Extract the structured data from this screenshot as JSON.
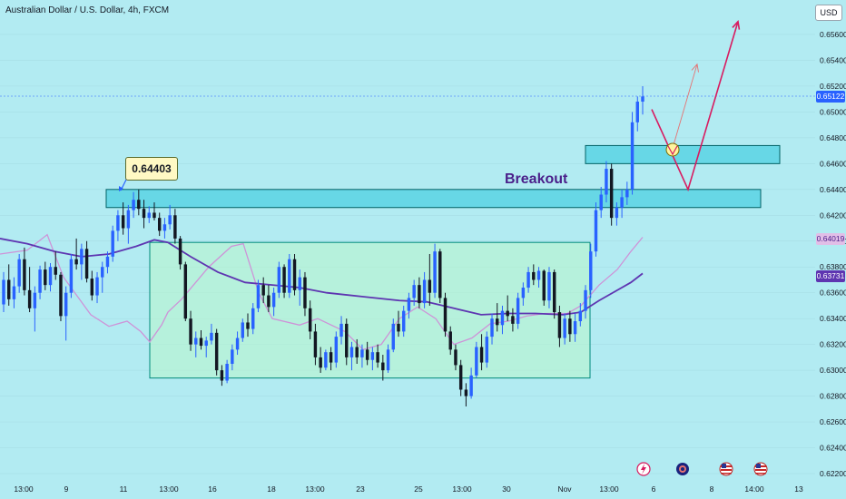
{
  "header": {
    "title": "Australian Dollar / U.S. Dollar, 4h, FXCM",
    "currency_label": "USD"
  },
  "annotations": {
    "callout_price": "0.64403",
    "breakout_label": "Breakout"
  },
  "price_tags": [
    {
      "label": "0.65122",
      "value": 0.65122,
      "color": "#2962ff"
    },
    {
      "label": "0.64019",
      "value": 0.64019,
      "color": "#e1bee7",
      "text_color": "#4a1f8a"
    },
    {
      "label": "0.63731",
      "value": 0.63731,
      "color": "#5e35b1"
    }
  ],
  "colors": {
    "background": "#b2ebf2",
    "bull": "#2962ff",
    "bear": "#131722",
    "ma_fast": "#ce93d8",
    "ma_slow": "#5e35b1",
    "zone": "#4dd0e1",
    "range_box": "#b9f6ca",
    "projection": "#d81b60"
  },
  "event_icons": [
    "flash-icon",
    "globe-event-icon",
    "us-flag-icon",
    "us-flag-icon"
  ],
  "chart_data": {
    "type": "candlestick",
    "title": "Australian Dollar / U.S. Dollar, 4h, FXCM",
    "ylim": [
      0.6218,
      0.6572
    ],
    "y_ticks": [
      "0.65600",
      "0.65400",
      "0.65200",
      "0.65000",
      "0.64800",
      "0.64600",
      "0.64400",
      "0.64200",
      "0.64000",
      "0.63800",
      "0.63600",
      "0.63400",
      "0.63200",
      "0.63000",
      "0.62800",
      "0.62600",
      "0.62400",
      "0.62200"
    ],
    "x_ticks": [
      "13:00",
      "9",
      "11",
      "13:00",
      "16",
      "18",
      "13:00",
      "23",
      "25",
      "13:00",
      "30",
      "Nov",
      "13:00",
      "6",
      "8",
      "14:00",
      "13"
    ],
    "candles": [
      [
        0.6351,
        0.6376,
        0.6345,
        0.637
      ],
      [
        0.637,
        0.6382,
        0.635,
        0.6355
      ],
      [
        0.6355,
        0.6372,
        0.6348,
        0.6365
      ],
      [
        0.6365,
        0.639,
        0.636,
        0.6386
      ],
      [
        0.6386,
        0.6395,
        0.6358,
        0.6362
      ],
      [
        0.6362,
        0.638,
        0.6345,
        0.6348
      ],
      [
        0.6348,
        0.6365,
        0.633,
        0.636
      ],
      [
        0.636,
        0.6381,
        0.6355,
        0.6378
      ],
      [
        0.6378,
        0.6384,
        0.6362,
        0.6366
      ],
      [
        0.6366,
        0.6383,
        0.6361,
        0.638
      ],
      [
        0.638,
        0.6392,
        0.637,
        0.6374
      ],
      [
        0.6374,
        0.6376,
        0.6338,
        0.6342
      ],
      [
        0.6342,
        0.6365,
        0.6323,
        0.636
      ],
      [
        0.636,
        0.639,
        0.6356,
        0.6386
      ],
      [
        0.6386,
        0.6402,
        0.6378,
        0.6382
      ],
      [
        0.6382,
        0.6398,
        0.637,
        0.6394
      ],
      [
        0.6394,
        0.64,
        0.6368,
        0.6371
      ],
      [
        0.6371,
        0.6377,
        0.6354,
        0.6358
      ],
      [
        0.6358,
        0.6376,
        0.6352,
        0.6372
      ],
      [
        0.6372,
        0.6384,
        0.636,
        0.638
      ],
      [
        0.638,
        0.6392,
        0.6375,
        0.6388
      ],
      [
        0.6388,
        0.6412,
        0.6384,
        0.6408
      ],
      [
        0.6408,
        0.6424,
        0.64,
        0.642
      ],
      [
        0.642,
        0.643,
        0.6405,
        0.641
      ],
      [
        0.641,
        0.6428,
        0.6398,
        0.6424
      ],
      [
        0.6424,
        0.6438,
        0.6418,
        0.6432
      ],
      [
        0.6432,
        0.644,
        0.642,
        0.6425
      ],
      [
        0.6425,
        0.6432,
        0.641,
        0.6418
      ],
      [
        0.6418,
        0.6427,
        0.6414,
        0.6422
      ],
      [
        0.6422,
        0.643,
        0.6416,
        0.6418
      ],
      [
        0.6418,
        0.6422,
        0.6404,
        0.6408
      ],
      [
        0.6408,
        0.6418,
        0.6402,
        0.6413
      ],
      [
        0.6413,
        0.6428,
        0.6409,
        0.642
      ],
      [
        0.642,
        0.6425,
        0.6398,
        0.6402
      ],
      [
        0.6402,
        0.6404,
        0.6378,
        0.6382
      ],
      [
        0.6382,
        0.6384,
        0.6338,
        0.634
      ],
      [
        0.634,
        0.6346,
        0.6315,
        0.632
      ],
      [
        0.632,
        0.633,
        0.631,
        0.6325
      ],
      [
        0.6325,
        0.6331,
        0.6316,
        0.6319
      ],
      [
        0.6319,
        0.6326,
        0.631,
        0.6323
      ],
      [
        0.6323,
        0.6336,
        0.632,
        0.6329
      ],
      [
        0.6329,
        0.6332,
        0.6296,
        0.63
      ],
      [
        0.63,
        0.6304,
        0.6288,
        0.6292
      ],
      [
        0.6292,
        0.6308,
        0.629,
        0.6305
      ],
      [
        0.6305,
        0.632,
        0.63,
        0.6316
      ],
      [
        0.6316,
        0.633,
        0.6312,
        0.6325
      ],
      [
        0.6325,
        0.634,
        0.6322,
        0.6337
      ],
      [
        0.6337,
        0.6344,
        0.6326,
        0.6332
      ],
      [
        0.6332,
        0.6352,
        0.6328,
        0.6348
      ],
      [
        0.6348,
        0.637,
        0.6345,
        0.6366
      ],
      [
        0.6366,
        0.6372,
        0.6352,
        0.6358
      ],
      [
        0.6358,
        0.6366,
        0.6345,
        0.6349
      ],
      [
        0.6349,
        0.6364,
        0.6342,
        0.636
      ],
      [
        0.636,
        0.6384,
        0.6356,
        0.638
      ],
      [
        0.638,
        0.6382,
        0.6356,
        0.636
      ],
      [
        0.636,
        0.639,
        0.6356,
        0.6386
      ],
      [
        0.6386,
        0.639,
        0.6358,
        0.6362
      ],
      [
        0.6362,
        0.6378,
        0.635,
        0.6372
      ],
      [
        0.6372,
        0.6376,
        0.6342,
        0.6348
      ],
      [
        0.6348,
        0.6354,
        0.6324,
        0.633
      ],
      [
        0.633,
        0.6336,
        0.6304,
        0.631
      ],
      [
        0.631,
        0.6318,
        0.6298,
        0.6302
      ],
      [
        0.6302,
        0.6316,
        0.63,
        0.6314
      ],
      [
        0.6314,
        0.6318,
        0.63,
        0.6306
      ],
      [
        0.6306,
        0.633,
        0.6302,
        0.6326
      ],
      [
        0.6326,
        0.6342,
        0.632,
        0.6336
      ],
      [
        0.6336,
        0.634,
        0.6304,
        0.631
      ],
      [
        0.631,
        0.6322,
        0.63,
        0.6318
      ],
      [
        0.6318,
        0.6324,
        0.6305,
        0.631
      ],
      [
        0.631,
        0.632,
        0.6302,
        0.6316
      ],
      [
        0.6316,
        0.6322,
        0.6304,
        0.6308
      ],
      [
        0.6308,
        0.6318,
        0.63,
        0.6314
      ],
      [
        0.6314,
        0.632,
        0.6302,
        0.6306
      ],
      [
        0.6306,
        0.6312,
        0.6292,
        0.63
      ],
      [
        0.63,
        0.632,
        0.6298,
        0.6316
      ],
      [
        0.6316,
        0.634,
        0.6314,
        0.6336
      ],
      [
        0.6336,
        0.6346,
        0.6326,
        0.633
      ],
      [
        0.633,
        0.635,
        0.6326,
        0.6346
      ],
      [
        0.6346,
        0.636,
        0.634,
        0.6356
      ],
      [
        0.6356,
        0.637,
        0.635,
        0.6366
      ],
      [
        0.6366,
        0.6372,
        0.6348,
        0.6352
      ],
      [
        0.6352,
        0.6376,
        0.6348,
        0.637
      ],
      [
        0.637,
        0.639,
        0.635,
        0.636
      ],
      [
        0.636,
        0.6398,
        0.6356,
        0.6392
      ],
      [
        0.6392,
        0.6394,
        0.6352,
        0.6356
      ],
      [
        0.6356,
        0.636,
        0.6326,
        0.633
      ],
      [
        0.633,
        0.6334,
        0.6312,
        0.6316
      ],
      [
        0.6316,
        0.632,
        0.63,
        0.6304
      ],
      [
        0.6304,
        0.6308,
        0.628,
        0.6285
      ],
      [
        0.6285,
        0.629,
        0.6272,
        0.628
      ],
      [
        0.628,
        0.6302,
        0.6278,
        0.6296
      ],
      [
        0.6296,
        0.6322,
        0.6294,
        0.6318
      ],
      [
        0.6318,
        0.6328,
        0.63,
        0.6306
      ],
      [
        0.6306,
        0.633,
        0.6302,
        0.6326
      ],
      [
        0.6326,
        0.6344,
        0.632,
        0.634
      ],
      [
        0.634,
        0.6352,
        0.633,
        0.6335
      ],
      [
        0.6335,
        0.635,
        0.6328,
        0.6346
      ],
      [
        0.6346,
        0.6358,
        0.6338,
        0.6342
      ],
      [
        0.6342,
        0.6348,
        0.633,
        0.6336
      ],
      [
        0.6336,
        0.636,
        0.6332,
        0.6356
      ],
      [
        0.6356,
        0.6368,
        0.635,
        0.6364
      ],
      [
        0.6364,
        0.638,
        0.636,
        0.6376
      ],
      [
        0.6376,
        0.6382,
        0.6366,
        0.637
      ],
      [
        0.637,
        0.638,
        0.6364,
        0.6377
      ],
      [
        0.6377,
        0.6378,
        0.635,
        0.6354
      ],
      [
        0.6354,
        0.638,
        0.6348,
        0.6376
      ],
      [
        0.6376,
        0.6378,
        0.634,
        0.6345
      ],
      [
        0.6345,
        0.635,
        0.6318,
        0.6325
      ],
      [
        0.6325,
        0.6344,
        0.632,
        0.634
      ],
      [
        0.634,
        0.6346,
        0.6322,
        0.6328
      ],
      [
        0.6328,
        0.6344,
        0.6322,
        0.6338
      ],
      [
        0.6338,
        0.6352,
        0.6334,
        0.6346
      ],
      [
        0.6346,
        0.6366,
        0.634,
        0.6362
      ],
      [
        0.6362,
        0.6398,
        0.6356,
        0.6392
      ],
      [
        0.6392,
        0.643,
        0.6388,
        0.6424
      ],
      [
        0.6424,
        0.6442,
        0.6418,
        0.6436
      ],
      [
        0.6436,
        0.6462,
        0.643,
        0.6456
      ],
      [
        0.6456,
        0.646,
        0.6412,
        0.6418
      ],
      [
        0.6418,
        0.643,
        0.6412,
        0.6426
      ],
      [
        0.6426,
        0.644,
        0.6418,
        0.6434
      ],
      [
        0.6434,
        0.6446,
        0.6428,
        0.644
      ],
      [
        0.644,
        0.65,
        0.6436,
        0.6492
      ],
      [
        0.6492,
        0.6512,
        0.6485,
        0.6508
      ],
      [
        0.6508,
        0.652,
        0.6498,
        0.6512
      ]
    ],
    "ma_fast": [
      [
        0,
        0.639
      ],
      [
        30,
        0.6393
      ],
      [
        52,
        0.6405
      ],
      [
        70,
        0.6372
      ],
      [
        100,
        0.6343
      ],
      [
        120,
        0.6334
      ],
      [
        140,
        0.6338
      ],
      [
        155,
        0.633
      ],
      [
        165,
        0.6322
      ],
      [
        178,
        0.6335
      ],
      [
        185,
        0.6345
      ],
      [
        200,
        0.6355
      ],
      [
        230,
        0.638
      ],
      [
        255,
        0.6396
      ],
      [
        268,
        0.6398
      ],
      [
        285,
        0.636
      ],
      [
        300,
        0.634
      ],
      [
        330,
        0.6335
      ],
      [
        350,
        0.634
      ],
      [
        380,
        0.633
      ],
      [
        400,
        0.6316
      ],
      [
        420,
        0.632
      ],
      [
        440,
        0.634
      ],
      [
        460,
        0.6349
      ],
      [
        480,
        0.634
      ],
      [
        500,
        0.632
      ],
      [
        520,
        0.6325
      ],
      [
        540,
        0.6336
      ],
      [
        560,
        0.6338
      ],
      [
        580,
        0.6342
      ],
      [
        600,
        0.6344
      ],
      [
        625,
        0.6344
      ],
      [
        640,
        0.635
      ],
      [
        660,
        0.6366
      ],
      [
        680,
        0.6378
      ],
      [
        695,
        0.6392
      ],
      [
        708,
        0.6403
      ]
    ],
    "ma_slow": [
      [
        0,
        0.6402
      ],
      [
        30,
        0.6398
      ],
      [
        60,
        0.6392
      ],
      [
        90,
        0.6388
      ],
      [
        120,
        0.639
      ],
      [
        150,
        0.6396
      ],
      [
        170,
        0.6401
      ],
      [
        185,
        0.6399
      ],
      [
        210,
        0.6388
      ],
      [
        240,
        0.6376
      ],
      [
        270,
        0.6368
      ],
      [
        300,
        0.6366
      ],
      [
        330,
        0.6364
      ],
      [
        360,
        0.636
      ],
      [
        400,
        0.6357
      ],
      [
        440,
        0.6354
      ],
      [
        470,
        0.6353
      ],
      [
        500,
        0.6348
      ],
      [
        530,
        0.6343
      ],
      [
        560,
        0.6344
      ],
      [
        590,
        0.6344
      ],
      [
        620,
        0.6343
      ],
      [
        640,
        0.6345
      ],
      [
        660,
        0.6354
      ],
      [
        680,
        0.6362
      ],
      [
        695,
        0.6368
      ],
      [
        708,
        0.6375
      ]
    ],
    "zones": [
      {
        "x0": 117,
        "x1": 838,
        "y_top": 0.644,
        "y_bottom": 0.6426
      },
      {
        "x0": 645,
        "x1": 859,
        "y_top": 0.6474,
        "y_bottom": 0.646
      }
    ],
    "range_box": {
      "x0": 165,
      "x1": 650,
      "y_top": 0.6399,
      "y_bottom": 0.6294
    },
    "projections": [
      {
        "style": "solid",
        "points": [
          [
            718,
            0.6502
          ],
          [
            758,
            0.644
          ],
          [
            813,
            0.657
          ]
        ]
      },
      {
        "style": "thin",
        "points": [
          [
            741,
            0.6472
          ],
          [
            768,
            0.6537
          ]
        ]
      }
    ]
  }
}
